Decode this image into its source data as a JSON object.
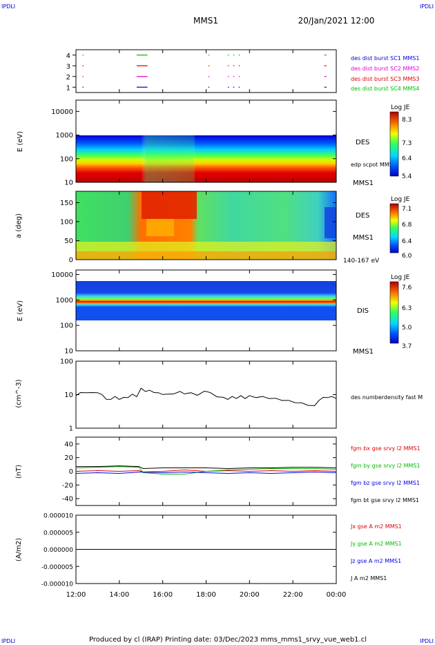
{
  "page": {
    "corner_tl": "IPDLI",
    "corner_tr": "IPDLI",
    "corner_bl": "IPDLI",
    "corner_br": "IPDLI",
    "title": "MMS1",
    "date": "20/Jan/2021 12:00",
    "footer": "Produced by cl (IRAP)   Printing date: 03/Dec/2023   mms_mms1_srvy_vue_web1.cl",
    "colors": {
      "corner": "#0000cc",
      "red": "#dd0000",
      "green": "#00bb00",
      "blue": "#0000dd",
      "magenta": "#dd00dd"
    }
  },
  "chart_data": [
    {
      "type": "scatter",
      "panel": "burst",
      "ylim": [
        0.5,
        4.5
      ],
      "yticks": [
        "1",
        "2",
        "3",
        "4"
      ],
      "series": [
        {
          "name": "des dist burst SC1 MMS1",
          "level": 1,
          "color": "#0000dd",
          "intervals": [
            [
              0.3,
              0.35
            ],
            [
              2.8,
              3.3
            ],
            [
              6.1,
              6.15
            ],
            [
              7.0,
              7.05
            ],
            [
              7.25,
              7.3
            ],
            [
              7.5,
              7.55
            ],
            [
              11.45,
              11.55
            ]
          ]
        },
        {
          "name": "des dist burst SC2 MMS2",
          "level": 2,
          "color": "#dd00dd",
          "intervals": [
            [
              0.3,
              0.35
            ],
            [
              2.8,
              3.3
            ],
            [
              6.1,
              6.15
            ],
            [
              7.0,
              7.05
            ],
            [
              7.25,
              7.3
            ],
            [
              7.5,
              7.55
            ],
            [
              11.45,
              11.55
            ]
          ]
        },
        {
          "name": "des dist burst SC3 MMS3",
          "level": 3,
          "color": "#dd0000",
          "intervals": [
            [
              0.3,
              0.35
            ],
            [
              2.8,
              3.3
            ],
            [
              6.1,
              6.15
            ],
            [
              7.0,
              7.05
            ],
            [
              7.25,
              7.3
            ],
            [
              7.5,
              7.55
            ],
            [
              11.45,
              11.55
            ]
          ]
        },
        {
          "name": "des dist burst SC4 MMS4",
          "level": 4,
          "color": "#00bb00",
          "intervals": [
            [
              0.3,
              0.35
            ],
            [
              2.8,
              3.3
            ],
            [
              6.1,
              6.15
            ],
            [
              7.0,
              7.05
            ],
            [
              7.25,
              7.3
            ],
            [
              7.5,
              7.55
            ],
            [
              11.45,
              11.55
            ]
          ]
        }
      ]
    },
    {
      "type": "heatmap",
      "panel": "des_energy",
      "ylabel": "E (eV)",
      "yscale": "log",
      "ylim": [
        10,
        30000
      ],
      "yticks": [
        "10",
        "100",
        "1000",
        "10000"
      ],
      "label_top": "DES",
      "label_mid": "edp scpot MMS1",
      "label_bottom": "MMS1",
      "colorbar": {
        "title": "Log JE",
        "ticks": [
          "8.3",
          "7.3",
          "6.4",
          "5.4"
        ]
      }
    },
    {
      "type": "heatmap",
      "panel": "des_pitch",
      "ylabel": "a (deg)",
      "ylim": [
        0,
        180
      ],
      "yticks": [
        "0",
        "50",
        "100",
        "150"
      ],
      "label_top": "DES",
      "label_mid": "MMS1",
      "label_bottom": "140-167 eV",
      "colorbar": {
        "title": "Log JE",
        "ticks": [
          "7.1",
          "6.8",
          "6.4",
          "6.0"
        ]
      }
    },
    {
      "type": "heatmap",
      "panel": "dis_energy",
      "ylabel": "E (eV)",
      "yscale": "log",
      "ylim": [
        10,
        15000
      ],
      "yticks": [
        "10",
        "100",
        "1000",
        "10000"
      ],
      "label_top": "DIS",
      "label_bottom": "MMS1",
      "colorbar": {
        "title": "Log JE",
        "ticks": [
          "7.6",
          "6.3",
          "5.0",
          "3.7"
        ]
      }
    },
    {
      "type": "line",
      "panel": "density",
      "ylabel": "(cm^-3)",
      "yscale": "log",
      "ylim": [
        1,
        100
      ],
      "yticks": [
        "1",
        "10",
        "100"
      ],
      "series": [
        {
          "name": "des numberdensity fast M",
          "color": "#000000",
          "x": [
            0,
            0.2,
            0.5,
            0.8,
            1.0,
            1.2,
            1.4,
            1.6,
            1.8,
            2.0,
            2.2,
            2.4,
            2.6,
            2.8,
            3.0,
            3.2,
            3.4,
            3.6,
            3.8,
            4.0,
            4.2,
            4.5,
            4.8,
            5.0,
            5.3,
            5.6,
            5.9,
            6.0,
            6.2,
            6.5,
            6.8,
            7.0,
            7.2,
            7.4,
            7.6,
            7.8,
            8.0,
            8.3,
            8.6,
            8.9,
            9.2,
            9.5,
            9.8,
            10.1,
            10.4,
            10.7,
            11.0,
            11.2,
            11.4,
            11.6,
            11.8,
            12.0
          ],
          "y": [
            9,
            12,
            11,
            12,
            11,
            10.5,
            7,
            7.5,
            8.5,
            7.5,
            8,
            8.5,
            10,
            9,
            15,
            13,
            13,
            12,
            11,
            10.5,
            10,
            11,
            12,
            11,
            11,
            10,
            12,
            13,
            11,
            9,
            8,
            7.5,
            8.5,
            8,
            9,
            8,
            9,
            8.5,
            8.5,
            8,
            7.5,
            7,
            6.5,
            6,
            5.5,
            5,
            4.5,
            7,
            8,
            8.5,
            8.5,
            8
          ]
        }
      ]
    },
    {
      "type": "line",
      "panel": "magnetic",
      "ylabel": "(nT)",
      "ylim": [
        -50,
        50
      ],
      "yticks": [
        "-40",
        "-20",
        "0",
        "20",
        "40"
      ],
      "series": [
        {
          "name": "fgm bx gse srvy l2 MMS1",
          "color": "#dd0000",
          "x": [
            0,
            1,
            2,
            2.9,
            3.1,
            4,
            5,
            6,
            7,
            8,
            9,
            10,
            11,
            12
          ],
          "y": [
            0,
            1,
            0,
            1,
            -1,
            0,
            2,
            0,
            1,
            0,
            1,
            0,
            1,
            0
          ]
        },
        {
          "name": "fgm by gse srvy l2 MMS1",
          "color": "#00bb00",
          "x": [
            0,
            1,
            2,
            2.9,
            3.1,
            4,
            5,
            5.5,
            6,
            7,
            8,
            9,
            10,
            11,
            12
          ],
          "y": [
            5,
            6,
            7,
            6,
            -2,
            -4,
            -4,
            -2,
            0,
            2,
            3,
            4,
            4,
            4,
            3
          ]
        },
        {
          "name": "fgm bz gse srvy l2 MMS1",
          "color": "#0000dd",
          "x": [
            0,
            1,
            2,
            3,
            4,
            5,
            6,
            7,
            8,
            9,
            10,
            11,
            12
          ],
          "y": [
            -3,
            -2,
            -3,
            -1,
            -2,
            -1,
            -2,
            -3,
            -2,
            -3,
            -2,
            -1,
            -2
          ]
        },
        {
          "name": "fgm bt gse srvy l2 MMS1",
          "color": "#000000",
          "x": [
            0,
            1,
            2,
            2.9,
            3.1,
            4,
            5,
            6,
            7,
            8,
            9,
            10,
            11,
            12
          ],
          "y": [
            7,
            7,
            8,
            7,
            4,
            5,
            5,
            5,
            4,
            5,
            5,
            6,
            6,
            5
          ]
        }
      ]
    },
    {
      "type": "line",
      "panel": "current",
      "ylabel": "(A/m2)",
      "ylim": [
        -1e-05,
        1e-05
      ],
      "yticks": [
        "-0.000010",
        "-0.000005",
        "0.000000",
        "0.000005",
        "0.000010"
      ],
      "xticks": [
        "12:00",
        "14:00",
        "16:00",
        "18:00",
        "20:00",
        "22:00",
        "00:00"
      ],
      "series": [
        {
          "name": "Jx gse A m2 MMS1",
          "color": "#dd0000",
          "x": [
            0,
            12
          ],
          "y": [
            0,
            0
          ]
        },
        {
          "name": "Jy gse A m2 MMS1",
          "color": "#00bb00",
          "x": [
            0,
            12
          ],
          "y": [
            0,
            0
          ]
        },
        {
          "name": "Jz gse A m2 MMS1",
          "color": "#0000dd",
          "x": [
            0,
            12
          ],
          "y": [
            0,
            0
          ]
        },
        {
          "name": "J A m2 MMS1",
          "color": "#000000",
          "x": [
            0,
            12
          ],
          "y": [
            0,
            0
          ]
        }
      ]
    }
  ]
}
